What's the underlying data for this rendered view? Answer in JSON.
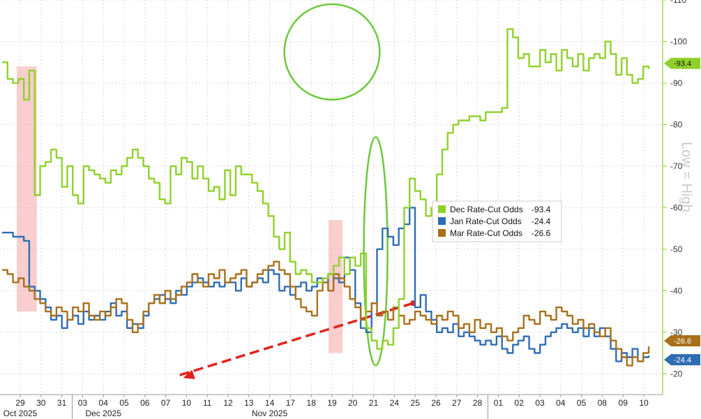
{
  "chart_data": {
    "type": "line",
    "xlabel": "",
    "ylabel": "",
    "ylim": [
      15,
      110
    ],
    "yticks": [
      20,
      30,
      40,
      50,
      60,
      70,
      80,
      90,
      100,
      110
    ],
    "grid": true,
    "legend_position": "center-right",
    "x_ticks": [
      "29",
      "30",
      "31",
      "03",
      "04",
      "05",
      "06",
      "07",
      "10",
      "11",
      "12",
      "13",
      "14",
      "17",
      "18",
      "19",
      "20",
      "21",
      "24",
      "25",
      "26",
      "27",
      "28",
      "01",
      "02",
      "03",
      "04",
      "05",
      "08",
      "09",
      "10"
    ],
    "month_labels": [
      {
        "label": "Oct 2025",
        "at": "29"
      },
      {
        "label": "Nov 2025",
        "at": "14"
      },
      {
        "label": "Dec 2025",
        "at": "04"
      }
    ],
    "axis_note": "Low = High",
    "colors": {
      "dec": "#8fd12a",
      "jan": "#2f6db3",
      "mar": "#a8701a",
      "highlight_box": "#f4a6a6",
      "ellipse": "#6cc83c",
      "arrow": "#e0231c"
    },
    "series": [
      {
        "name": "Dec Rate-Cut Odds",
        "last_label": "-93.4",
        "legend_value": "-93.4",
        "values": [
          95,
          91,
          90,
          91,
          86,
          93,
          63,
          70,
          71,
          74,
          72,
          65,
          70,
          63,
          61,
          70,
          69,
          68,
          67,
          66,
          69,
          68,
          70,
          72,
          74,
          72,
          70,
          67,
          66,
          62,
          61,
          70,
          68,
          72,
          71,
          67,
          70,
          67,
          64,
          65,
          62,
          69,
          63,
          70,
          68,
          68,
          66,
          64,
          61,
          58,
          53,
          50,
          54,
          47,
          44,
          45,
          44,
          42,
          42,
          43,
          44,
          46,
          48,
          44,
          48,
          46,
          49,
          31,
          28,
          26,
          28,
          27,
          31,
          38,
          60,
          67,
          64,
          62,
          58,
          60,
          68,
          74,
          78,
          80,
          81,
          81,
          82,
          82,
          81,
          83,
          83,
          83,
          84,
          103,
          101,
          96,
          97,
          94,
          94,
          98,
          95,
          97,
          93,
          98,
          96,
          94,
          97,
          93,
          96,
          97,
          96,
          100,
          97,
          92,
          96,
          92,
          90,
          91,
          94,
          93.4
        ]
      },
      {
        "name": "Jan Rate-Cut Odds",
        "last_label": "-24.4",
        "legend_value": "-24.4",
        "values": [
          54,
          54,
          53,
          53,
          52,
          41,
          40,
          38,
          36,
          33,
          34,
          31,
          33,
          34,
          32,
          35,
          33,
          34,
          33,
          35,
          37,
          34,
          35,
          31,
          32,
          31,
          34,
          37,
          38,
          39,
          38,
          37,
          40,
          39,
          41,
          42,
          43,
          42,
          41,
          42,
          41,
          42,
          42,
          40,
          43,
          41,
          42,
          43,
          42,
          45,
          44,
          40,
          41,
          39,
          41,
          42,
          40,
          41,
          43,
          42,
          44,
          43,
          42,
          48,
          45,
          37,
          31,
          30,
          37,
          50,
          55,
          53,
          51,
          55,
          56,
          60,
          36,
          39,
          35,
          33,
          30,
          31,
          30,
          32,
          29,
          30,
          29,
          28,
          27,
          28,
          27,
          29,
          26,
          25,
          27,
          28,
          29,
          26,
          25,
          27,
          29,
          30,
          31,
          32,
          31,
          30,
          31,
          29,
          31,
          29,
          31,
          29,
          26,
          23,
          25,
          24,
          26,
          23,
          24,
          24.4
        ]
      },
      {
        "name": "Mar Rate-Cut Odds",
        "last_label": "-26.6",
        "legend_value": "-26.6",
        "values": [
          45,
          44,
          42,
          43,
          41,
          40,
          38,
          37,
          35,
          34,
          36,
          35,
          33,
          36,
          35,
          37,
          34,
          33,
          35,
          34,
          36,
          38,
          37,
          33,
          30,
          32,
          35,
          37,
          39,
          37,
          40,
          38,
          39,
          41,
          42,
          44,
          42,
          41,
          44,
          43,
          45,
          42,
          43,
          44,
          45,
          41,
          42,
          44,
          45,
          46,
          47,
          45,
          44,
          41,
          38,
          36,
          35,
          34,
          40,
          42,
          40,
          44,
          43,
          41,
          38,
          36,
          33,
          35,
          37,
          34,
          35,
          33,
          36,
          34,
          32,
          33,
          35,
          34,
          33,
          32,
          34,
          33,
          35,
          34,
          31,
          32,
          30,
          33,
          31,
          32,
          30,
          31,
          29,
          28,
          30,
          31,
          34,
          33,
          32,
          35,
          34,
          33,
          36,
          35,
          34,
          32,
          33,
          31,
          32,
          30,
          29,
          31,
          28,
          26,
          24,
          22,
          24,
          23,
          25,
          26.6
        ]
      }
    ],
    "annotations": [
      {
        "type": "box",
        "from": "29",
        "to": "30",
        "ylim": [
          35,
          94
        ]
      },
      {
        "type": "box",
        "from": "19",
        "to": "19",
        "ylim": [
          25,
          57
        ]
      },
      {
        "type": "ellipse",
        "at": "21",
        "ylim": [
          22,
          77
        ]
      },
      {
        "type": "ellipse",
        "from": "28",
        "to": "10",
        "ylim": [
          86,
          109
        ]
      },
      {
        "type": "arrow",
        "from_x": "25",
        "from_y": 37,
        "to_x": "10",
        "to_y": 19
      }
    ]
  }
}
